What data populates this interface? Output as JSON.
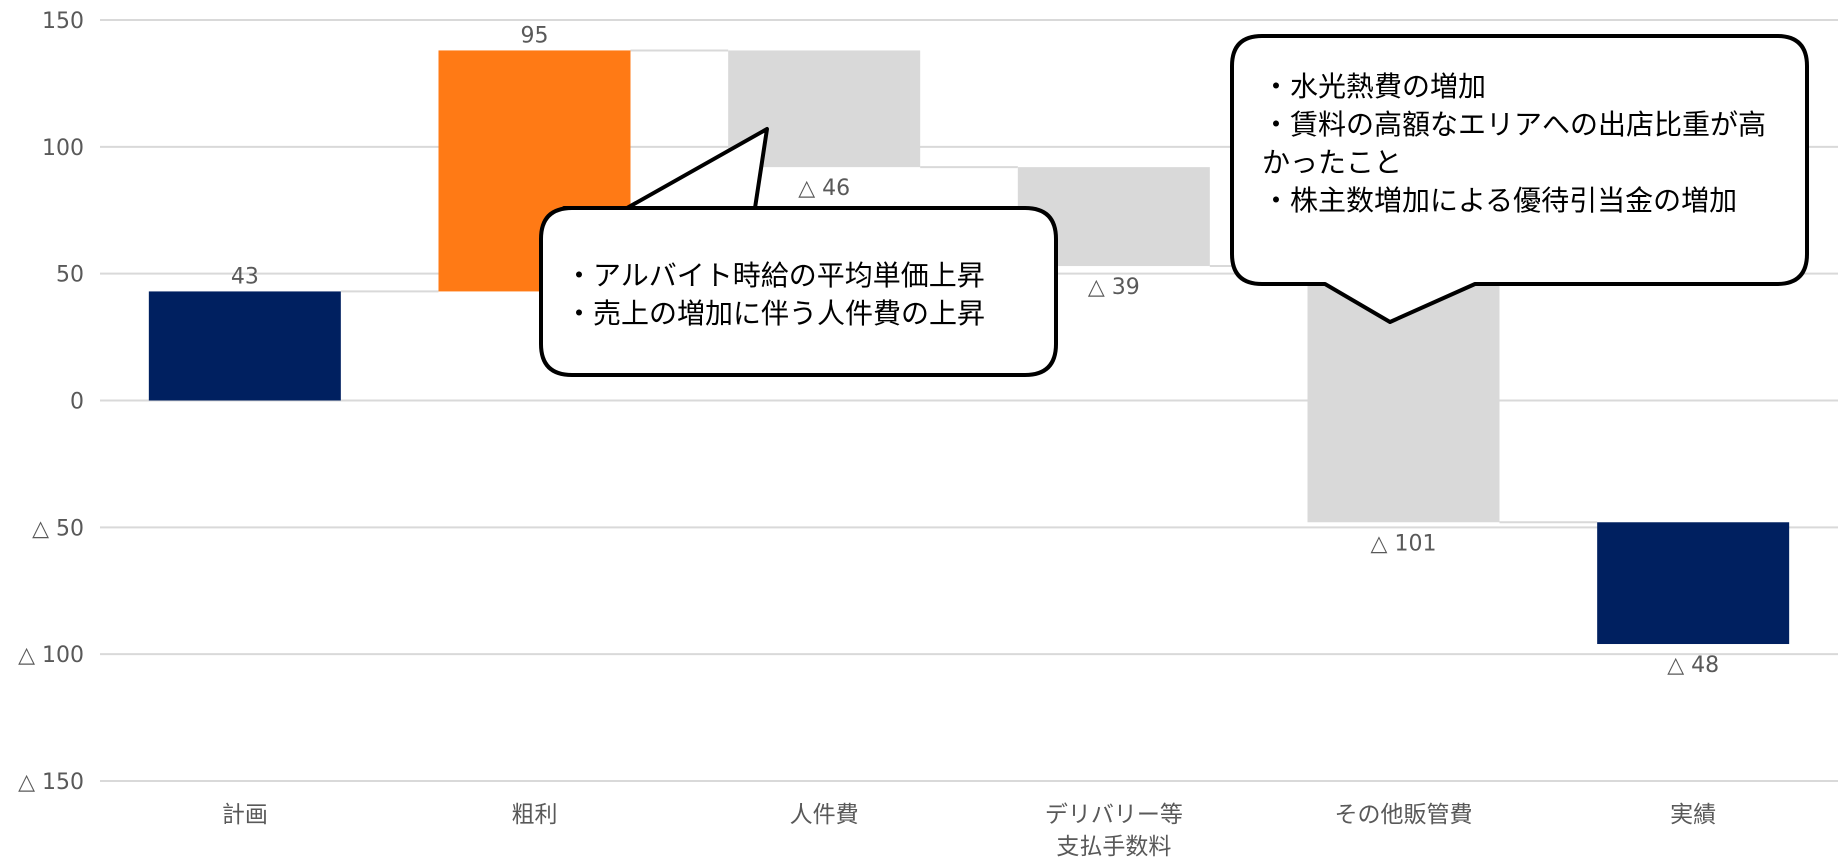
{
  "chart_data": {
    "type": "waterfall",
    "title": "",
    "xlabel": "",
    "ylabel": "",
    "ylim": [
      -150,
      150
    ],
    "yticks": [
      150,
      100,
      50,
      0,
      -50,
      -100,
      -150
    ],
    "ytick_labels": [
      "150",
      "100",
      "50",
      "0",
      "△ 50",
      "△ 100",
      "△ 150"
    ],
    "grid": true,
    "categories": [
      {
        "label": [
          "計画"
        ],
        "value": 43,
        "base": 0,
        "kind": "total",
        "data_label": "43"
      },
      {
        "label": [
          "粗利"
        ],
        "value": 95,
        "base": 43,
        "kind": "increase",
        "data_label": "95"
      },
      {
        "label": [
          "人件費"
        ],
        "value": -46,
        "base": 138,
        "kind": "decrease",
        "data_label": "△ 46"
      },
      {
        "label": [
          "デリバリー等",
          "支払手数料"
        ],
        "value": -39,
        "base": 92,
        "kind": "decrease",
        "data_label": "△ 39"
      },
      {
        "label": [
          "その他販管費"
        ],
        "value": -101,
        "base": 53,
        "kind": "decrease",
        "data_label": "△ 101"
      },
      {
        "label": [
          "実績"
        ],
        "value": -48,
        "base": -48,
        "kind": "total",
        "data_label": "△ 48"
      }
    ],
    "colors": {
      "total": "#002060",
      "increase": "#FF7A15",
      "decrease": "#D9D9D9",
      "grid": "#D9D9D9",
      "connector": "#D9D9D9"
    },
    "annotations": [
      {
        "id": "callout-labor",
        "target": "人件費",
        "lines": [
          "・アルバイト時給の平均単価上昇",
          "・売上の増加に伴う人件費の上昇"
        ]
      },
      {
        "id": "callout-other",
        "target": "その他販管費",
        "lines": [
          "・水光熱費の増加",
          "・賃料の高額なエリアへの出店比重が高",
          "かったこと",
          "・株主数増加による優待引当金の増加"
        ]
      }
    ]
  }
}
